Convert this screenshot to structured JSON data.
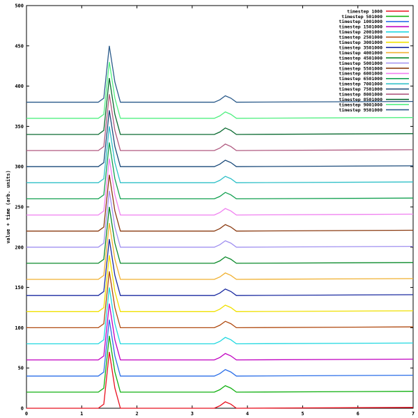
{
  "chart_data": {
    "type": "line",
    "title": "",
    "xlabel": "",
    "ylabel": "value + time (arb. units)",
    "xlim": [
      0,
      7
    ],
    "ylim": [
      0,
      500
    ],
    "xticks": [
      "0",
      "1",
      "2",
      "3",
      "4",
      "5",
      "6",
      "7"
    ],
    "yticks": [
      "0",
      "50",
      "100",
      "150",
      "200",
      "250",
      "300",
      "350",
      "400",
      "450",
      "500"
    ],
    "grid": false,
    "legend_position": "top-right",
    "x": [
      0,
      1.3,
      1.4,
      1.5,
      1.6,
      1.7,
      3.4,
      3.5,
      3.6,
      3.7,
      3.8,
      7
    ],
    "series": [
      {
        "name": "timestep 1000",
        "color": "#e8101e",
        "values": [
          0,
          0,
          5,
          70,
          25,
          0,
          0,
          3,
          8,
          5,
          0,
          1
        ]
      },
      {
        "name": "timestep 501000",
        "color": "#10b010",
        "values": [
          20,
          20,
          25,
          90,
          45,
          20,
          20,
          23,
          28,
          25,
          20,
          21
        ]
      },
      {
        "name": "timestep 1001000",
        "color": "#2a6ee8",
        "values": [
          40,
          40,
          45,
          110,
          65,
          40,
          40,
          43,
          48,
          45,
          40,
          41
        ]
      },
      {
        "name": "timestep 1501000",
        "color": "#c000c0",
        "values": [
          60,
          60,
          65,
          130,
          85,
          60,
          60,
          63,
          68,
          65,
          60,
          61
        ]
      },
      {
        "name": "timestep 2001000",
        "color": "#20d8e0",
        "values": [
          80,
          80,
          85,
          150,
          105,
          80,
          80,
          83,
          88,
          85,
          80,
          81
        ]
      },
      {
        "name": "timestep 2501000",
        "color": "#b04a10",
        "values": [
          100,
          100,
          105,
          170,
          125,
          100,
          100,
          103,
          108,
          105,
          100,
          101
        ]
      },
      {
        "name": "timestep 3001000",
        "color": "#f0e000",
        "values": [
          120,
          120,
          125,
          190,
          145,
          120,
          120,
          123,
          128,
          125,
          120,
          121
        ]
      },
      {
        "name": "timestep 3501000",
        "color": "#1a2aa0",
        "values": [
          140,
          140,
          145,
          210,
          165,
          140,
          140,
          143,
          148,
          145,
          140,
          141
        ]
      },
      {
        "name": "timestep 4001000",
        "color": "#f0b030",
        "values": [
          160,
          160,
          165,
          230,
          185,
          160,
          160,
          163,
          168,
          165,
          160,
          161
        ]
      },
      {
        "name": "timestep 4501000",
        "color": "#0a8a2a",
        "values": [
          180,
          180,
          185,
          250,
          205,
          180,
          180,
          183,
          188,
          185,
          180,
          181
        ]
      },
      {
        "name": "timestep 5001000",
        "color": "#a090f0",
        "values": [
          200,
          200,
          205,
          270,
          225,
          200,
          200,
          203,
          208,
          205,
          200,
          201
        ]
      },
      {
        "name": "timestep 5501000",
        "color": "#8a3a10",
        "values": [
          220,
          220,
          225,
          290,
          245,
          220,
          220,
          223,
          228,
          225,
          220,
          221
        ]
      },
      {
        "name": "timestep 6001000",
        "color": "#f080f0",
        "values": [
          240,
          240,
          245,
          310,
          265,
          240,
          240,
          243,
          248,
          245,
          240,
          241
        ]
      },
      {
        "name": "timestep 6501000",
        "color": "#12a050",
        "values": [
          260,
          260,
          265,
          330,
          285,
          260,
          260,
          263,
          268,
          265,
          260,
          261
        ]
      },
      {
        "name": "timestep 7001000",
        "color": "#30c0c8",
        "values": [
          280,
          280,
          285,
          350,
          305,
          280,
          280,
          283,
          288,
          285,
          280,
          281
        ]
      },
      {
        "name": "timestep 7501000",
        "color": "#1a4a7a",
        "values": [
          300,
          300,
          305,
          370,
          325,
          300,
          300,
          303,
          308,
          305,
          300,
          301
        ]
      },
      {
        "name": "timestep 8001000",
        "color": "#b05a80",
        "values": [
          320,
          320,
          325,
          390,
          345,
          320,
          320,
          323,
          328,
          325,
          320,
          321
        ]
      },
      {
        "name": "timestep 8501000",
        "color": "#0a6a30",
        "values": [
          340,
          340,
          345,
          410,
          365,
          340,
          340,
          343,
          348,
          345,
          340,
          341
        ]
      },
      {
        "name": "timestep 9001000",
        "color": "#50f080",
        "values": [
          360,
          360,
          365,
          430,
          385,
          360,
          360,
          363,
          368,
          365,
          360,
          361
        ]
      },
      {
        "name": "timestep 9501000",
        "color": "#2a5a8a",
        "values": [
          380,
          380,
          385,
          450,
          405,
          380,
          380,
          383,
          388,
          385,
          380,
          381
        ]
      }
    ]
  }
}
